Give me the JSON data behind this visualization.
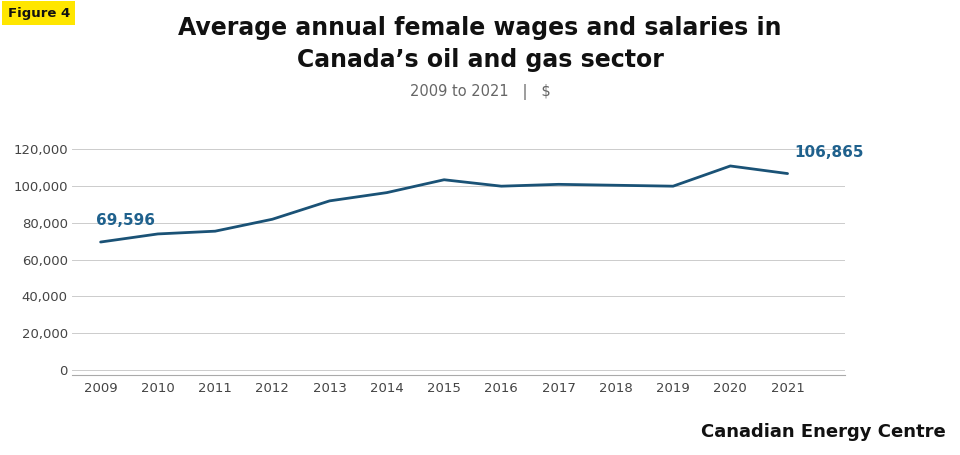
{
  "title_line1": "Average annual female wages and salaries in",
  "title_line2": "Canada’s oil and gas sector",
  "subtitle": "2009 to 2021   |   $",
  "figure_label": "Figure 4",
  "figure_label_bg": "#FFE600",
  "x_values": [
    2009,
    2010,
    2011,
    2012,
    2013,
    2014,
    2015,
    2016,
    2017,
    2018,
    2019,
    2020,
    2021
  ],
  "y_values": [
    69596,
    74000,
    75500,
    82000,
    92000,
    96500,
    103500,
    100000,
    101000,
    100500,
    100000,
    111000,
    106865
  ],
  "line_color": "#1a5276",
  "line_width": 2.0,
  "first_label": "69,596",
  "last_label": "106,865",
  "label_color": "#1F618D",
  "ylabel_values": [
    0,
    20000,
    40000,
    60000,
    80000,
    100000,
    120000
  ],
  "ylim": [
    -3000,
    132000
  ],
  "xlim_left": 2008.5,
  "xlim_right": 2022.0,
  "background_color": "#ffffff",
  "grid_color": "#cccccc",
  "watermark": "Canadian Energy Centre",
  "title_fontsize": 17,
  "subtitle_fontsize": 10.5,
  "tick_fontsize": 9.5,
  "label_fontsize": 11,
  "watermark_fontsize": 13
}
